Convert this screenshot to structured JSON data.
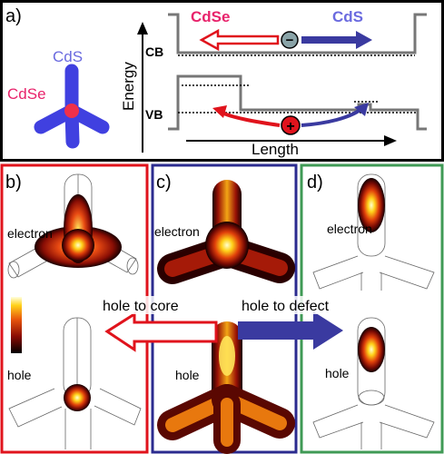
{
  "panel_a": {
    "tag": "a)",
    "cdse_title": "CdSe",
    "cds_title": "CdS",
    "tetrapod_cds": "CdS",
    "tetrapod_cdse": "CdSe",
    "cb": "CB",
    "vb": "VB",
    "energy": "Energy",
    "length": "Length",
    "electron_sign": "−",
    "hole_sign": "+"
  },
  "panel_b": {
    "tag": "b)",
    "electron": "electron",
    "hole": "hole"
  },
  "panel_c": {
    "tag": "c)",
    "electron": "electron",
    "hole": "hole"
  },
  "panel_d": {
    "tag": "d)",
    "electron": "electron",
    "hole": "hole"
  },
  "arrows": {
    "to_core": "hole to core",
    "to_defect": "hole to defect"
  },
  "colors": {
    "cdse": "#e8236b",
    "cds": "#6a6adf",
    "red_frame": "#e0131c",
    "blue_frame": "#2b2b8f",
    "green_frame": "#3f9a55"
  }
}
